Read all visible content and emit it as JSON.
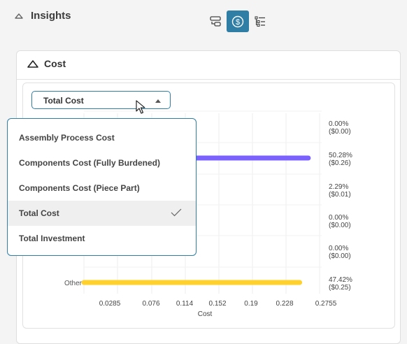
{
  "insights": {
    "title": "Insights"
  },
  "toolbar": {
    "buttons": [
      {
        "icon": "layers-icon",
        "active": false
      },
      {
        "icon": "dollar-icon",
        "active": true
      },
      {
        "icon": "list-tree-icon",
        "active": false
      }
    ],
    "accent": "#2f7ea6"
  },
  "cost": {
    "title": "Cost",
    "select": {
      "value": "Total Cost"
    },
    "menu": {
      "options": [
        "Assembly Process Cost",
        "Components Cost (Fully Burdened)",
        "Components Cost (Piece Part)",
        "Total Cost",
        "Total Investment"
      ],
      "selected_index": 3
    }
  },
  "chart_data": {
    "type": "bar",
    "orientation": "horizontal",
    "xlabel": "Cost",
    "x_ticks": [
      "0.0285",
      "0.076",
      "0.114",
      "0.152",
      "0.19",
      "0.228",
      "0.2755"
    ],
    "xlim": [
      0,
      0.2755
    ],
    "categories": [
      "",
      "",
      "",
      "",
      "",
      "Other"
    ],
    "values": [
      0.0,
      0.26,
      0.01,
      0.0,
      0.0,
      0.25
    ],
    "percent_labels": [
      "0.00%",
      "50.28%",
      "2.29%",
      "0.00%",
      "0.00%",
      "47.42%"
    ],
    "value_labels": [
      "($0.00)",
      "($0.26)",
      "($0.01)",
      "($0.00)",
      "($0.00)",
      "($0.25)"
    ],
    "colors": [
      "#7b61ff",
      "#7b61ff",
      "#7b61ff",
      "#7b61ff",
      "#7b61ff",
      "#ffd12a"
    ],
    "grid": true
  }
}
